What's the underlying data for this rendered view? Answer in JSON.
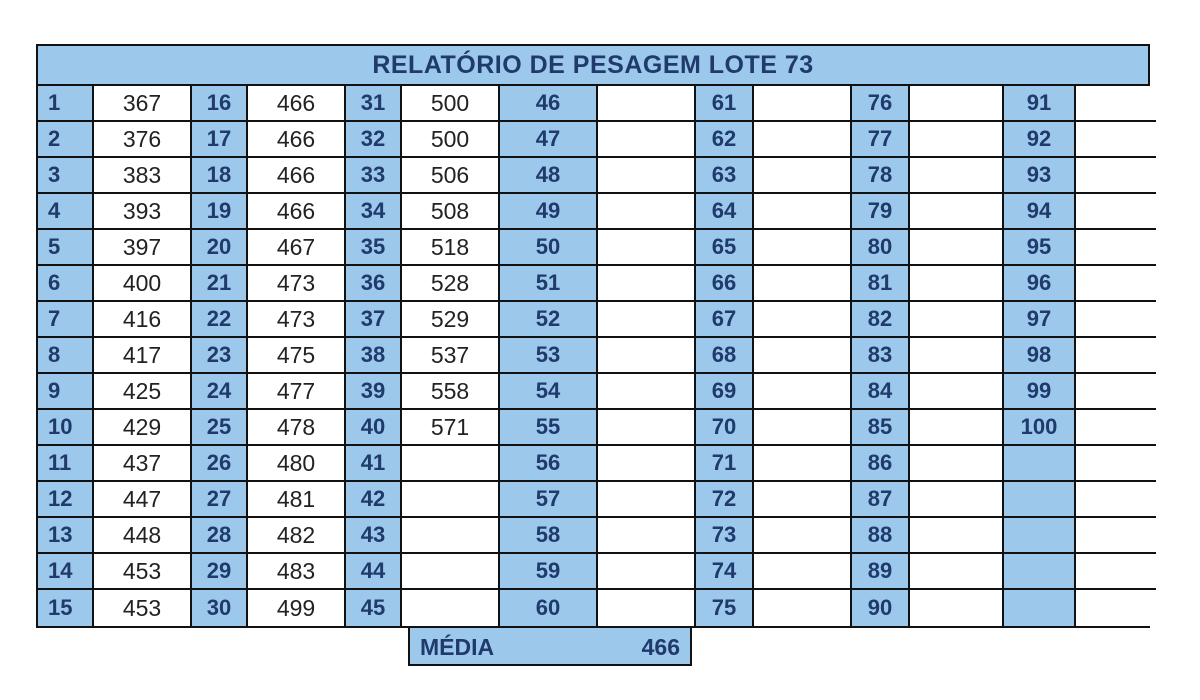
{
  "report": {
    "title": "RELATÓRIO DE PESAGEM LOTE  73",
    "column_groups": [
      {
        "ids": [
          "1",
          "2",
          "3",
          "4",
          "5",
          "6",
          "7",
          "8",
          "9",
          "10",
          "11",
          "12",
          "13",
          "14",
          "15"
        ],
        "weights": [
          "367",
          "376",
          "383",
          "393",
          "397",
          "400",
          "416",
          "417",
          "425",
          "429",
          "437",
          "447",
          "448",
          "453",
          "453"
        ]
      },
      {
        "ids": [
          "16",
          "17",
          "18",
          "19",
          "20",
          "21",
          "22",
          "23",
          "24",
          "25",
          "26",
          "27",
          "28",
          "29",
          "30"
        ],
        "weights": [
          "466",
          "466",
          "466",
          "466",
          "467",
          "473",
          "473",
          "475",
          "477",
          "478",
          "480",
          "481",
          "482",
          "483",
          "499"
        ]
      },
      {
        "ids": [
          "31",
          "32",
          "33",
          "34",
          "35",
          "36",
          "37",
          "38",
          "39",
          "40",
          "41",
          "42",
          "43",
          "44",
          "45"
        ],
        "weights": [
          "500",
          "500",
          "506",
          "508",
          "518",
          "528",
          "529",
          "537",
          "558",
          "571",
          "",
          "",
          "",
          "",
          ""
        ]
      },
      {
        "ids": [
          "46",
          "47",
          "48",
          "49",
          "50",
          "51",
          "52",
          "53",
          "54",
          "55",
          "56",
          "57",
          "58",
          "59",
          "60"
        ],
        "weights": [
          "",
          "",
          "",
          "",
          "",
          "",
          "",
          "",
          "",
          "",
          "",
          "",
          "",
          "",
          ""
        ]
      },
      {
        "ids": [
          "61",
          "62",
          "63",
          "64",
          "65",
          "66",
          "67",
          "68",
          "69",
          "70",
          "71",
          "72",
          "73",
          "74",
          "75"
        ],
        "weights": [
          "",
          "",
          "",
          "",
          "",
          "",
          "",
          "",
          "",
          "",
          "",
          "",
          "",
          "",
          ""
        ]
      },
      {
        "ids": [
          "76",
          "77",
          "78",
          "79",
          "80",
          "81",
          "82",
          "83",
          "84",
          "85",
          "86",
          "87",
          "88",
          "89",
          "90"
        ],
        "weights": [
          "",
          "",
          "",
          "",
          "",
          "",
          "",
          "",
          "",
          "",
          "",
          "",
          "",
          "",
          ""
        ]
      },
      {
        "ids": [
          "91",
          "92",
          "93",
          "94",
          "95",
          "96",
          "97",
          "98",
          "99",
          "100",
          "",
          "",
          "",
          "",
          ""
        ],
        "weights": [
          "",
          "",
          "",
          "",
          "",
          "",
          "",
          "",
          "",
          "",
          "",
          "",
          "",
          "",
          ""
        ]
      }
    ]
  },
  "summary": {
    "label": "MÉDIA",
    "value": "466"
  },
  "colors": {
    "header_fill": "#9cc8ec",
    "header_text": "#1f3a6b",
    "border": "#111111"
  }
}
